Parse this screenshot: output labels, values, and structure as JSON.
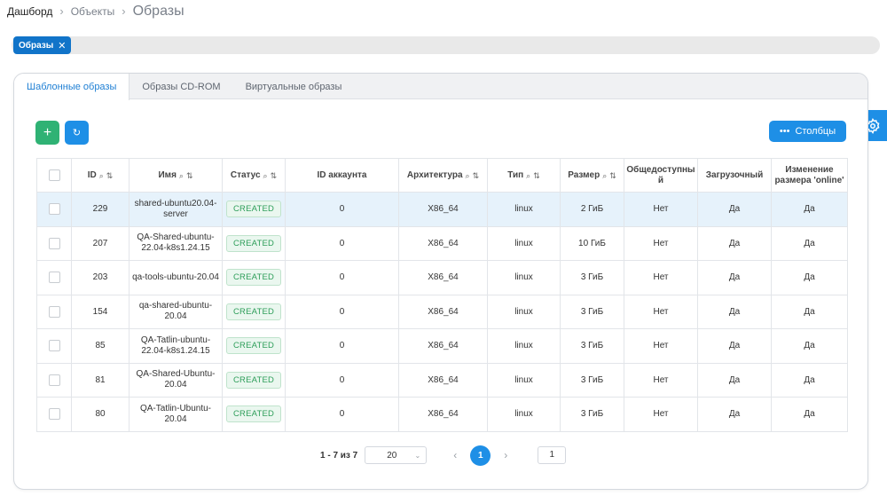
{
  "breadcrumb": {
    "items": [
      "Дашборд",
      "Объекты"
    ],
    "current": "Образы"
  },
  "filter": {
    "chip_label": "Образы"
  },
  "tabs": [
    {
      "label": "Шаблонные образы",
      "active": true
    },
    {
      "label": "Образы CD-ROM",
      "active": false
    },
    {
      "label": "Виртуальные образы",
      "active": false
    }
  ],
  "toolbar": {
    "add_label": "+",
    "columns_label": "Столбцы"
  },
  "table": {
    "headers": {
      "id": "ID",
      "name": "Имя",
      "status": "Статус",
      "account": "ID аккаунта",
      "arch": "Архитектура",
      "type": "Тип",
      "size": "Размер",
      "public": "Общедоступный",
      "bootable": "Загрузочный",
      "resize": "Изменение размера 'online'"
    },
    "rows": [
      {
        "id": "229",
        "name": "shared-ubuntu20.04-server",
        "status": "CREATED",
        "account": "0",
        "arch": "X86_64",
        "type": "linux",
        "size": "2 ГиБ",
        "public": "Нет",
        "bootable": "Да",
        "resize": "Да",
        "selected": true
      },
      {
        "id": "207",
        "name": "QA-Shared-ubuntu-22.04-k8s1.24.15",
        "status": "CREATED",
        "account": "0",
        "arch": "X86_64",
        "type": "linux",
        "size": "10 ГиБ",
        "public": "Нет",
        "bootable": "Да",
        "resize": "Да",
        "selected": false
      },
      {
        "id": "203",
        "name": "qa-tools-ubuntu-20.04",
        "status": "CREATED",
        "account": "0",
        "arch": "X86_64",
        "type": "linux",
        "size": "3 ГиБ",
        "public": "Нет",
        "bootable": "Да",
        "resize": "Да",
        "selected": false
      },
      {
        "id": "154",
        "name": "qa-shared-ubuntu-20.04",
        "status": "CREATED",
        "account": "0",
        "arch": "X86_64",
        "type": "linux",
        "size": "3 ГиБ",
        "public": "Нет",
        "bootable": "Да",
        "resize": "Да",
        "selected": false
      },
      {
        "id": "85",
        "name": "QA-Tatlin-ubuntu-22.04-k8s1.24.15",
        "status": "CREATED",
        "account": "0",
        "arch": "X86_64",
        "type": "linux",
        "size": "3 ГиБ",
        "public": "Нет",
        "bootable": "Да",
        "resize": "Да",
        "selected": false
      },
      {
        "id": "81",
        "name": "QA-Shared-Ubuntu-20.04",
        "status": "CREATED",
        "account": "0",
        "arch": "X86_64",
        "type": "linux",
        "size": "3 ГиБ",
        "public": "Нет",
        "bootable": "Да",
        "resize": "Да",
        "selected": false
      },
      {
        "id": "80",
        "name": "QA-Tatlin-Ubuntu-20.04",
        "status": "CREATED",
        "account": "0",
        "arch": "X86_64",
        "type": "linux",
        "size": "3 ГиБ",
        "public": "Нет",
        "bootable": "Да",
        "resize": "Да",
        "selected": false
      }
    ]
  },
  "pagination": {
    "range": "1 - 7 из 7",
    "page_size": "20",
    "current_page": "1",
    "goto_value": "1"
  },
  "icons": {
    "search": "search-icon",
    "sort": "sort-icon",
    "refresh": "refresh-icon",
    "settings": "gear-icon",
    "more": "more-icon"
  },
  "colors": {
    "accent": "#1e8fe6",
    "success": "#2fb274",
    "chip": "#1174c9",
    "status_text": "#2e9e5a",
    "selected_row": "#e6f2fb"
  }
}
